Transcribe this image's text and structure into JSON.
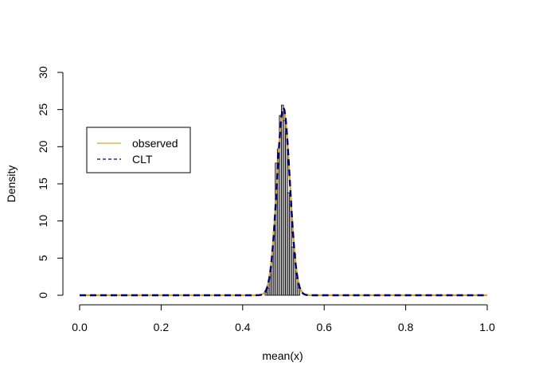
{
  "chart_data": {
    "type": "histogram",
    "xlabel": "mean(x)",
    "ylabel": "Density",
    "xlim": [
      0.0,
      1.0
    ],
    "ylim": [
      0,
      30
    ],
    "x_ticks": [
      "0.0",
      "0.2",
      "0.4",
      "0.6",
      "0.8",
      "1.0"
    ],
    "x_tick_values": [
      0.0,
      0.2,
      0.4,
      0.6,
      0.8,
      1.0
    ],
    "y_ticks": [
      "0",
      "5",
      "10",
      "15",
      "20",
      "25",
      "30"
    ],
    "y_tick_values": [
      0,
      5,
      10,
      15,
      20,
      25,
      30
    ],
    "bin_width": 0.005,
    "bins": [
      {
        "x0": 0.455,
        "x1": 0.46,
        "density": 0.4
      },
      {
        "x0": 0.46,
        "x1": 0.465,
        "density": 0.9
      },
      {
        "x0": 0.465,
        "x1": 0.47,
        "density": 2.8
      },
      {
        "x0": 0.47,
        "x1": 0.475,
        "density": 4.5
      },
      {
        "x0": 0.475,
        "x1": 0.48,
        "density": 8.6
      },
      {
        "x0": 0.48,
        "x1": 0.485,
        "density": 17.8
      },
      {
        "x0": 0.485,
        "x1": 0.49,
        "density": 19.7
      },
      {
        "x0": 0.49,
        "x1": 0.495,
        "density": 24.2
      },
      {
        "x0": 0.495,
        "x1": 0.5,
        "density": 25.6
      },
      {
        "x0": 0.5,
        "x1": 0.505,
        "density": 23.5
      },
      {
        "x0": 0.505,
        "x1": 0.51,
        "density": 21.7
      },
      {
        "x0": 0.51,
        "x1": 0.515,
        "density": 13.8
      },
      {
        "x0": 0.515,
        "x1": 0.52,
        "density": 12.2
      },
      {
        "x0": 0.52,
        "x1": 0.525,
        "density": 6.5
      },
      {
        "x0": 0.525,
        "x1": 0.53,
        "density": 5.6
      },
      {
        "x0": 0.53,
        "x1": 0.535,
        "density": 2.3
      },
      {
        "x0": 0.535,
        "x1": 0.54,
        "density": 1.0
      }
    ],
    "series": [
      {
        "name": "observed",
        "style": "solid",
        "color": "#DAA520",
        "kind": "kernel-density",
        "sd": 0.016,
        "mean": 0.5
      },
      {
        "name": "CLT",
        "style": "dashed",
        "color": "#000080",
        "kind": "normal-density",
        "sd": 0.0158,
        "mean": 0.5
      }
    ],
    "bar_fill": "#BEBEBE",
    "bar_stroke": "#000000",
    "legend_position": "top-left",
    "grid": false
  }
}
